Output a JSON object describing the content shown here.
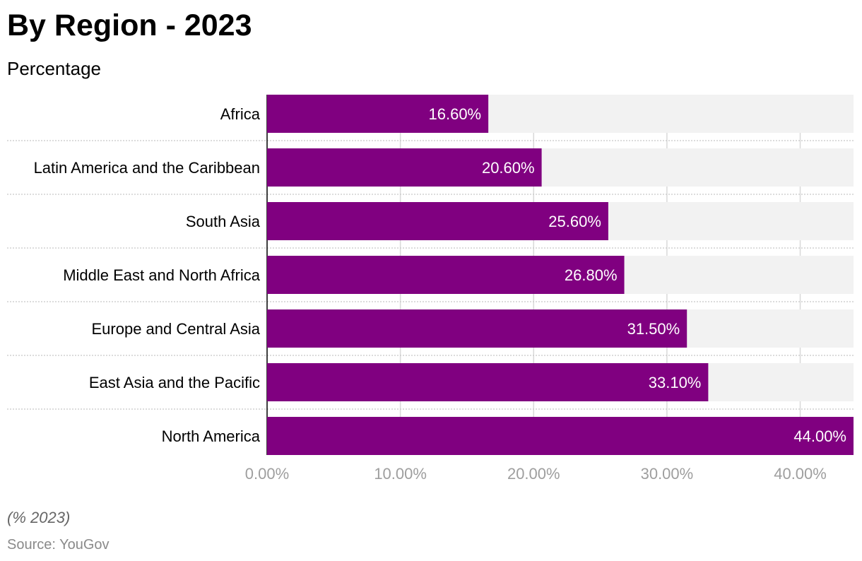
{
  "header": {
    "title": "By Region - 2023",
    "subtitle": "Percentage"
  },
  "footer": {
    "note": "(% 2023)",
    "source": "Source: YouGov"
  },
  "colors": {
    "bar": "#800080",
    "track": "#f2f2f2",
    "grid": "#d9d9d9",
    "separator": "#c8c8c8",
    "axis": "#000000",
    "tick_text": "#9e9e9e",
    "value_text": "#ffffff"
  },
  "chart_data": {
    "type": "bar",
    "orientation": "horizontal",
    "title": "By Region - 2023",
    "subtitle": "Percentage",
    "categories": [
      "Africa",
      "Latin America and the Caribbean",
      "South Asia",
      "Middle East and North Africa",
      "Europe and Central Asia",
      "East Asia and the Pacific",
      "North America"
    ],
    "values": [
      16.6,
      20.6,
      25.6,
      26.8,
      31.5,
      33.1,
      44.0
    ],
    "value_labels": [
      "16.60%",
      "20.60%",
      "25.60%",
      "26.80%",
      "31.50%",
      "33.10%",
      "44.00%"
    ],
    "xlim": [
      0,
      44
    ],
    "xticks": [
      0,
      10,
      20,
      30,
      40
    ],
    "xtick_labels": [
      "0.00%",
      "10.00%",
      "20.00%",
      "30.00%",
      "40.00%"
    ],
    "grid": true,
    "legend": "none"
  }
}
